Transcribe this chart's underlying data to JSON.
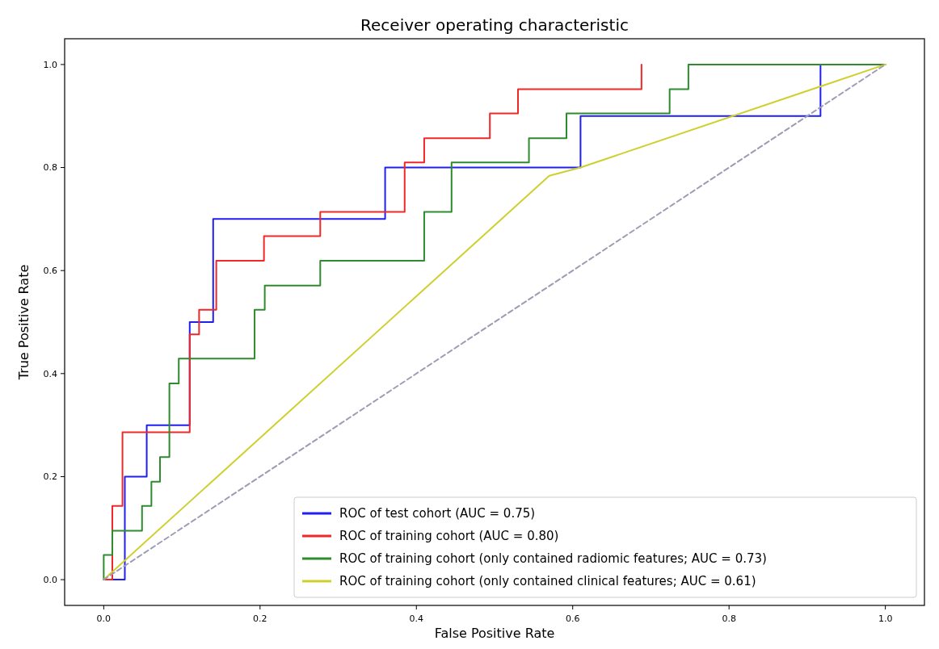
{
  "chart_data": {
    "type": "line",
    "title": "Receiver operating characteristic",
    "xlabel": "False Positive Rate",
    "ylabel": "True Positive Rate",
    "xlim": [
      -0.05,
      1.05
    ],
    "ylim": [
      -0.05,
      1.05
    ],
    "xticks": [
      {
        "value": 0,
        "label": "0.0"
      },
      {
        "value": 0.2,
        "label": "0.2"
      },
      {
        "value": 0.4,
        "label": "0.4"
      },
      {
        "value": 0.6,
        "label": "0.6"
      },
      {
        "value": 0.8,
        "label": "0.8"
      },
      {
        "value": 1,
        "label": "1.0"
      }
    ],
    "yticks": [
      {
        "value": 0,
        "label": "0.0"
      },
      {
        "value": 0.2,
        "label": "0.2"
      },
      {
        "value": 0.4,
        "label": "0.4"
      },
      {
        "value": 0.6,
        "label": "0.6"
      },
      {
        "value": 0.8,
        "label": "0.8"
      },
      {
        "value": 1,
        "label": "1.0"
      }
    ],
    "grid": false,
    "legend": "bottom right",
    "line_style": "solid",
    "series": [
      {
        "name": "ROC of test cohort (AUC = 0.75)",
        "color": "#1f1ff0",
        "x": [
          0,
          0.027,
          0.027,
          0.055,
          0.055,
          0.11,
          0.11,
          0.14,
          0.14,
          0.36,
          0.36,
          0.61,
          0.61,
          0.917,
          0.917
        ],
        "values": [
          0,
          0,
          0.2,
          0.2,
          0.3,
          0.3,
          0.5,
          0.5,
          0.7,
          0.7,
          0.8,
          0.8,
          0.9,
          0.9,
          1
        ]
      },
      {
        "name": "ROC of training cohort (AUC = 0.80)",
        "color": "#f02828",
        "x": [
          0,
          0.011,
          0.011,
          0.024,
          0.024,
          0.11,
          0.11,
          0.122,
          0.122,
          0.144,
          0.144,
          0.205,
          0.205,
          0.277,
          0.277,
          0.385,
          0.385,
          0.41,
          0.41,
          0.494,
          0.494,
          0.53,
          0.53,
          0.688,
          0.688
        ],
        "values": [
          0,
          0,
          0.143,
          0.143,
          0.286,
          0.286,
          0.476,
          0.476,
          0.524,
          0.524,
          0.619,
          0.619,
          0.667,
          0.667,
          0.714,
          0.714,
          0.81,
          0.81,
          0.857,
          0.857,
          0.905,
          0.905,
          0.952,
          0.952,
          1
        ]
      },
      {
        "name": "ROC of training cohort (only contained radiomic features; AUC = 0.73)",
        "color": "#2e8b2e",
        "x": [
          0,
          0,
          0.011,
          0.011,
          0.049,
          0.049,
          0.061,
          0.061,
          0.072,
          0.072,
          0.084,
          0.084,
          0.096,
          0.096,
          0.193,
          0.193,
          0.206,
          0.206,
          0.277,
          0.277,
          0.41,
          0.41,
          0.445,
          0.445,
          0.544,
          0.544,
          0.592,
          0.592,
          0.724,
          0.724,
          0.748,
          0.748,
          1
        ],
        "values": [
          0,
          0.048,
          0.048,
          0.095,
          0.095,
          0.143,
          0.143,
          0.19,
          0.19,
          0.238,
          0.238,
          0.381,
          0.381,
          0.429,
          0.429,
          0.524,
          0.524,
          0.571,
          0.571,
          0.619,
          0.619,
          0.714,
          0.714,
          0.81,
          0.81,
          0.857,
          0.857,
          0.905,
          0.905,
          0.952,
          0.952,
          1,
          1
        ]
      },
      {
        "name": "ROC of training cohort (only contained clinical features; AUC = 0.61)",
        "color": "#cfcf30",
        "x": [
          0,
          0.57,
          0.61,
          1
        ],
        "values": [
          0,
          0.784,
          0.8,
          1
        ]
      },
      {
        "color": "#9c9cb4",
        "line_style": "dashed",
        "x": [
          0,
          1
        ],
        "values": [
          0,
          1
        ]
      }
    ]
  }
}
